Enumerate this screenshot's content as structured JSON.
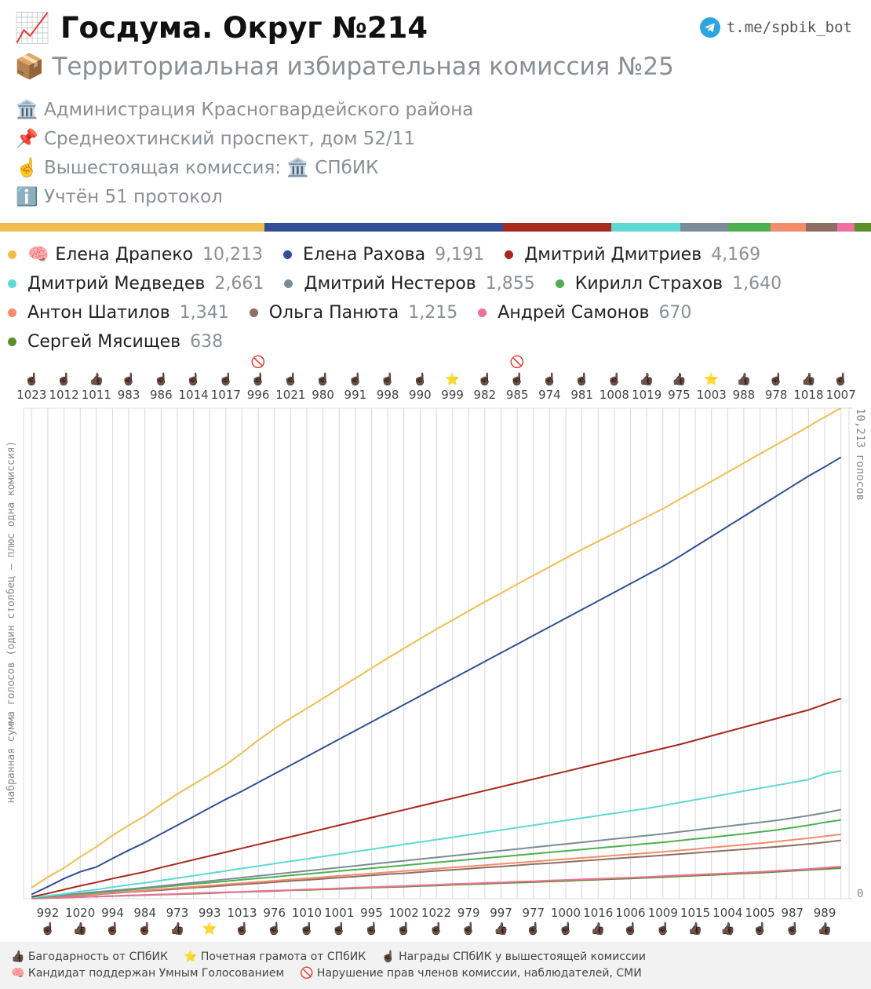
{
  "header": {
    "title": "📈 Госдума. Округ №214",
    "link": "t.me/spbik_bot",
    "subtitle": "📦 Территориальная избирательная комиссия №25",
    "info": [
      "🏛️ Администрация Красногвардейского района",
      "📌 Среднеохтинский проспект, дом 52/11",
      "☝️ Вышестоящая комиссия: 🏛️ СПбИК",
      "ℹ️ Учтён 51 протокол"
    ]
  },
  "chart_data": {
    "type": "line",
    "y_label": "набранная сумма голосов (один столбец – плюс одна комиссия)",
    "ylim": [
      0,
      10213
    ],
    "yticks": [
      0,
      {
        "value": 10213,
        "label": "10,213 голосов"
      }
    ],
    "grid": true,
    "categories": [
      "1023",
      "992",
      "1012",
      "1020",
      "1011",
      "994",
      "983",
      "984",
      "986",
      "973",
      "1014",
      "993",
      "1017",
      "1013",
      "996",
      "976",
      "1021",
      "1010",
      "980",
      "1001",
      "991",
      "995",
      "998",
      "1002",
      "990",
      "1022",
      "999",
      "979",
      "982",
      "997",
      "985",
      "977",
      "974",
      "1000",
      "981",
      "1016",
      "1008",
      "1006",
      "1019",
      "1009",
      "975",
      "1015",
      "1003",
      "1004",
      "988",
      "1005",
      "978",
      "987",
      "1018",
      "989",
      "1007"
    ],
    "column_icons": [
      [
        "☝🏿"
      ],
      [
        "☝🏿"
      ],
      [
        "☝🏿"
      ],
      [
        "👍🏿"
      ],
      [
        "👍🏿"
      ],
      [
        "☝🏿"
      ],
      [
        "☝🏿"
      ],
      [
        "☝🏿"
      ],
      [
        "☝🏿"
      ],
      [
        "👍🏿"
      ],
      [
        "☝🏿"
      ],
      [
        "⭐"
      ],
      [
        "☝🏿"
      ],
      [
        "☝🏿"
      ],
      [
        "🚫",
        "☝🏿"
      ],
      [
        "☝🏿"
      ],
      [
        "☝🏿"
      ],
      [
        "☝🏿"
      ],
      [
        "☝🏿"
      ],
      [
        "☝🏿"
      ],
      [
        "☝🏿"
      ],
      [
        "☝🏿"
      ],
      [
        "☝🏿"
      ],
      [
        "☝🏿"
      ],
      [
        "☝🏿"
      ],
      [
        "☝🏿"
      ],
      [
        "⭐"
      ],
      [
        "☝🏿"
      ],
      [
        "☝🏿"
      ],
      [
        "👍🏿"
      ],
      [
        "🚫",
        "☝🏿"
      ],
      [
        "☝🏿"
      ],
      [
        "☝🏿"
      ],
      [
        "☝🏿"
      ],
      [
        "☝🏿"
      ],
      [
        "👍🏿"
      ],
      [
        "☝🏿"
      ],
      [
        "☝🏿"
      ],
      [
        "👍🏿"
      ],
      [
        "☝🏿"
      ],
      [
        "👍🏿"
      ],
      [
        "👍🏿"
      ],
      [
        "⭐"
      ],
      [
        "👍🏿"
      ],
      [
        "👍🏿"
      ],
      [
        "☝🏿"
      ],
      [
        "☝🏿"
      ],
      [
        "☝🏿"
      ],
      [
        "👍🏿"
      ],
      [
        "👍🏿"
      ],
      [
        "☝🏿"
      ]
    ],
    "series": [
      {
        "name": "Елена Драпеко",
        "badge": "🧠",
        "color": "#f0bd4f",
        "total": 10213,
        "total_label": "10,213",
        "values": [
          230,
          450,
          640,
          870,
          1080,
          1320,
          1530,
          1720,
          1960,
          2180,
          2380,
          2580,
          2790,
          3040,
          3300,
          3540,
          3760,
          3960,
          4170,
          4380,
          4590,
          4800,
          5010,
          5210,
          5410,
          5610,
          5800,
          5990,
          6180,
          6360,
          6550,
          6730,
          6910,
          7090,
          7270,
          7440,
          7610,
          7780,
          7950,
          8120,
          8310,
          8500,
          8690,
          8880,
          9070,
          9260,
          9450,
          9640,
          9830,
          10030,
          10213
        ]
      },
      {
        "name": "Елена Рахова",
        "color": "#334e96",
        "total": 9191,
        "total_label": "9,191",
        "values": [
          90,
          250,
          420,
          560,
          660,
          840,
          1010,
          1170,
          1350,
          1530,
          1710,
          1890,
          2070,
          2240,
          2420,
          2600,
          2780,
          2960,
          3140,
          3320,
          3500,
          3680,
          3860,
          4040,
          4220,
          4400,
          4580,
          4760,
          4940,
          5120,
          5300,
          5480,
          5660,
          5840,
          6020,
          6200,
          6380,
          6560,
          6740,
          6920,
          7120,
          7330,
          7540,
          7750,
          7960,
          8170,
          8380,
          8590,
          8800,
          8990,
          9191
        ]
      },
      {
        "name": "Дмитрий Дмитриев",
        "color": "#a8281f",
        "total": 4169,
        "total_label": "4,169",
        "values": [
          40,
          110,
          190,
          270,
          340,
          420,
          490,
          560,
          650,
          730,
          810,
          890,
          970,
          1050,
          1130,
          1210,
          1290,
          1370,
          1450,
          1530,
          1610,
          1690,
          1770,
          1850,
          1930,
          2010,
          2090,
          2170,
          2250,
          2330,
          2410,
          2490,
          2570,
          2650,
          2730,
          2810,
          2890,
          2970,
          3050,
          3130,
          3210,
          3300,
          3390,
          3480,
          3570,
          3660,
          3750,
          3840,
          3930,
          4050,
          4169
        ]
      },
      {
        "name": "Дмитрий Медведев",
        "color": "#5ed9d4",
        "total": 2661,
        "total_label": "2,661",
        "values": [
          20,
          60,
          100,
          150,
          190,
          240,
          290,
          330,
          380,
          430,
          480,
          530,
          580,
          630,
          680,
          730,
          780,
          830,
          880,
          930,
          980,
          1030,
          1080,
          1130,
          1180,
          1230,
          1280,
          1330,
          1380,
          1430,
          1480,
          1530,
          1580,
          1630,
          1680,
          1730,
          1780,
          1830,
          1880,
          1940,
          2000,
          2060,
          2120,
          2180,
          2240,
          2300,
          2360,
          2420,
          2480,
          2600,
          2661
        ]
      },
      {
        "name": "Дмитрий Нестеров",
        "color": "#7b8c98",
        "total": 1855,
        "total_label": "1,855",
        "values": [
          15,
          45,
          75,
          110,
          140,
          170,
          200,
          230,
          265,
          300,
          335,
          370,
          405,
          440,
          475,
          510,
          545,
          580,
          615,
          650,
          685,
          720,
          755,
          790,
          825,
          860,
          895,
          930,
          965,
          1000,
          1035,
          1070,
          1105,
          1140,
          1175,
          1210,
          1245,
          1280,
          1315,
          1350,
          1390,
          1430,
          1470,
          1510,
          1550,
          1590,
          1630,
          1680,
          1730,
          1790,
          1855
        ]
      },
      {
        "name": "Кирилл Страхов",
        "color": "#4caf50",
        "total": 1640,
        "total_label": "1,640",
        "values": [
          15,
          40,
          70,
          100,
          125,
          155,
          185,
          215,
          245,
          275,
          305,
          335,
          365,
          395,
          425,
          455,
          485,
          515,
          545,
          575,
          605,
          635,
          665,
          695,
          725,
          755,
          785,
          815,
          845,
          875,
          905,
          935,
          965,
          995,
          1025,
          1055,
          1085,
          1115,
          1145,
          1175,
          1210,
          1245,
          1280,
          1315,
          1350,
          1390,
          1430,
          1480,
          1530,
          1590,
          1640
        ]
      },
      {
        "name": "Антон Шатилов",
        "color": "#f48b6c",
        "total": 1341,
        "total_label": "1,341",
        "values": [
          10,
          30,
          55,
          80,
          100,
          125,
          150,
          175,
          200,
          225,
          250,
          275,
          300,
          325,
          350,
          375,
          400,
          425,
          450,
          475,
          500,
          525,
          550,
          575,
          600,
          625,
          650,
          675,
          700,
          725,
          750,
          775,
          800,
          825,
          850,
          875,
          900,
          925,
          950,
          975,
          1005,
          1035,
          1065,
          1095,
          1125,
          1155,
          1190,
          1225,
          1260,
          1300,
          1341
        ]
      },
      {
        "name": "Ольга Панюта",
        "color": "#8d6e63",
        "total": 1215,
        "total_label": "1,215",
        "values": [
          10,
          30,
          50,
          70,
          90,
          115,
          140,
          160,
          180,
          205,
          230,
          250,
          275,
          300,
          320,
          345,
          370,
          390,
          415,
          440,
          460,
          485,
          510,
          530,
          555,
          580,
          600,
          625,
          650,
          670,
          695,
          720,
          740,
          765,
          790,
          810,
          835,
          860,
          880,
          905,
          930,
          955,
          980,
          1005,
          1030,
          1055,
          1080,
          1110,
          1140,
          1175,
          1215
        ]
      },
      {
        "name": "Андрей Самонов",
        "color": "#f06fa0",
        "total": 670,
        "total_label": "670",
        "values": [
          5,
          15,
          25,
          35,
          45,
          55,
          70,
          80,
          90,
          100,
          115,
          125,
          135,
          145,
          160,
          170,
          180,
          195,
          205,
          215,
          230,
          240,
          255,
          265,
          280,
          290,
          305,
          315,
          330,
          340,
          355,
          365,
          380,
          390,
          405,
          415,
          430,
          440,
          455,
          470,
          485,
          500,
          515,
          530,
          545,
          560,
          580,
          600,
          620,
          645,
          670
        ]
      },
      {
        "name": "Сергей Мясищев",
        "color": "#5a8f29",
        "total": 638,
        "total_label": "638",
        "values": [
          5,
          15,
          25,
          35,
          45,
          55,
          65,
          75,
          85,
          95,
          105,
          115,
          130,
          140,
          150,
          160,
          175,
          185,
          195,
          205,
          215,
          230,
          240,
          250,
          265,
          275,
          290,
          300,
          310,
          325,
          335,
          345,
          360,
          370,
          385,
          395,
          410,
          420,
          435,
          450,
          465,
          480,
          495,
          510,
          525,
          540,
          560,
          580,
          600,
          620,
          638
        ]
      }
    ]
  },
  "footer": {
    "items": [
      [
        "👍🏿 Багодарность от СПбИК",
        "⭐ Почетная грамота от СПбИК",
        "☝🏿 Награды СПбИК у вышестоящей комиссии"
      ],
      [
        "🧠 Кандидат поддержан Умным Голосованием",
        "🚫 Нарушение прав членов комиссии, наблюдателей, СМИ"
      ]
    ]
  }
}
